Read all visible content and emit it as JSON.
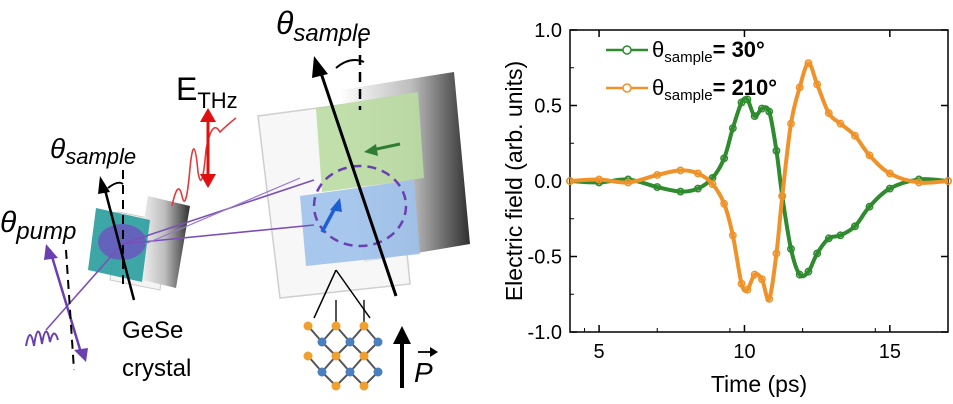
{
  "schematic": {
    "theta_sample_top": {
      "main": "θ",
      "sub": "sample"
    },
    "theta_sample_left": {
      "main": "θ",
      "sub": "sample"
    },
    "theta_pump": {
      "main": "θ",
      "sub": "pump"
    },
    "e_thz": {
      "main": "E",
      "sub": "THz"
    },
    "crystal_line1": "GeSe",
    "crystal_line2": "crystal",
    "polarization_symbol": "P"
  },
  "chart_data": {
    "type": "line",
    "xlabel": "Time (ps)",
    "ylabel": "Electric field (arb. units)",
    "xlim": [
      4,
      17
    ],
    "ylim": [
      -1.0,
      1.0
    ],
    "xticks": [
      5,
      10,
      15
    ],
    "yticks": [
      -1.0,
      -0.5,
      0.0,
      0.5,
      1.0
    ],
    "ytick_labels": [
      "-1.0",
      "-0.5",
      "0.0",
      "0.5",
      "1.0"
    ],
    "grid": false,
    "legend_position": "top-left",
    "series": [
      {
        "name_main": "θ",
        "name_sub": "sample",
        "name_value": "= 30°",
        "color": "#2e8b2e",
        "x": [
          4.0,
          5.0,
          6.0,
          7.0,
          7.8,
          8.4,
          8.9,
          9.3,
          9.6,
          9.9,
          10.1,
          10.35,
          10.6,
          10.85,
          11.1,
          11.3,
          11.6,
          11.9,
          12.2,
          12.5,
          12.9,
          13.3,
          13.8,
          14.3,
          15.0,
          16.0,
          17.0
        ],
        "y": [
          0.0,
          -0.01,
          0.01,
          -0.04,
          -0.07,
          -0.05,
          0.02,
          0.15,
          0.35,
          0.52,
          0.54,
          0.43,
          0.48,
          0.46,
          0.2,
          -0.1,
          -0.45,
          -0.62,
          -0.6,
          -0.48,
          -0.38,
          -0.36,
          -0.3,
          -0.17,
          -0.05,
          0.01,
          0.0
        ]
      },
      {
        "name_main": "θ",
        "name_sub": "sample",
        "name_value": "= 210°",
        "color": "#f0922a",
        "x": [
          4.0,
          5.0,
          6.0,
          7.0,
          7.8,
          8.4,
          8.9,
          9.3,
          9.6,
          9.9,
          10.1,
          10.35,
          10.6,
          10.85,
          11.1,
          11.3,
          11.6,
          11.9,
          12.2,
          12.5,
          12.9,
          13.3,
          13.8,
          14.3,
          15.0,
          16.0,
          17.0
        ],
        "y": [
          0.0,
          0.01,
          -0.01,
          0.04,
          0.07,
          0.05,
          -0.02,
          -0.15,
          -0.36,
          -0.68,
          -0.72,
          -0.62,
          -0.65,
          -0.78,
          -0.48,
          -0.1,
          0.38,
          0.62,
          0.78,
          0.64,
          0.45,
          0.38,
          0.3,
          0.17,
          0.05,
          -0.01,
          0.0
        ]
      }
    ]
  }
}
